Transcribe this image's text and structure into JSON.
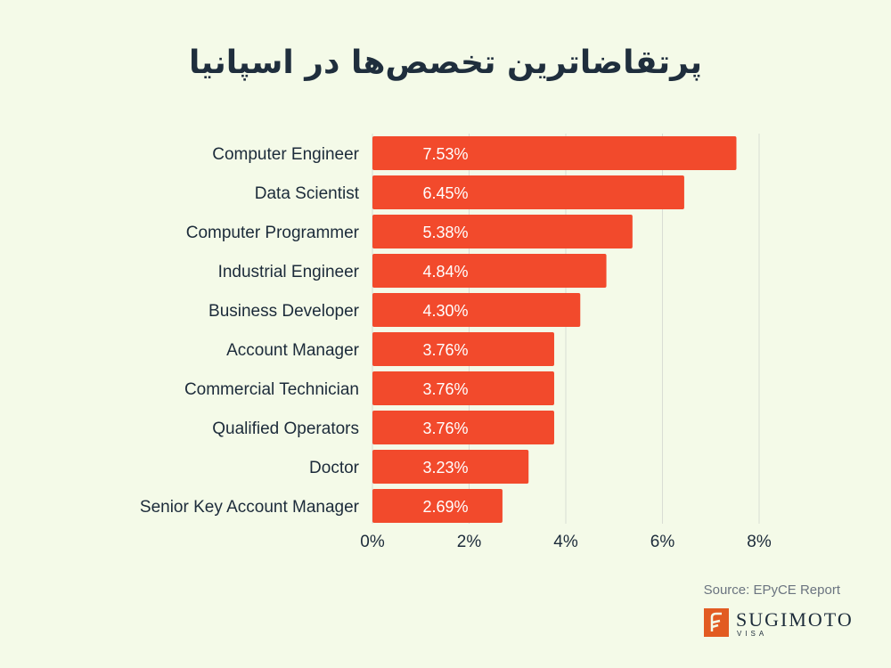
{
  "title": "پرتقاضاترین تخصص‌ها در اسپانیا",
  "source": "Source: EPyCE Report",
  "brand": {
    "name": "SUGIMOTO",
    "sub": "VISA",
    "color": "#e25b22"
  },
  "chart_data": {
    "type": "bar",
    "orientation": "horizontal",
    "categories": [
      "Computer Engineer",
      "Data Scientist",
      "Computer Programmer",
      "Industrial Engineer",
      "Business Developer",
      "Account Manager",
      "Commercial Technician",
      "Qualified Operators",
      "Doctor",
      "Senior Key Account Manager"
    ],
    "values": [
      7.53,
      6.45,
      5.38,
      4.84,
      4.3,
      3.76,
      3.76,
      3.76,
      3.23,
      2.69
    ],
    "value_labels": [
      "7.53%",
      "6.45%",
      "5.38%",
      "4.84%",
      "4.30%",
      "3.76%",
      "3.76%",
      "3.76%",
      "3.23%",
      "2.69%"
    ],
    "xlim": [
      0,
      8
    ],
    "xticks": [
      0,
      2,
      4,
      6,
      8
    ],
    "xtick_labels": [
      "0%",
      "2%",
      "4%",
      "6%",
      "8%"
    ],
    "grid": true,
    "bar_color": "#f24a2c"
  }
}
